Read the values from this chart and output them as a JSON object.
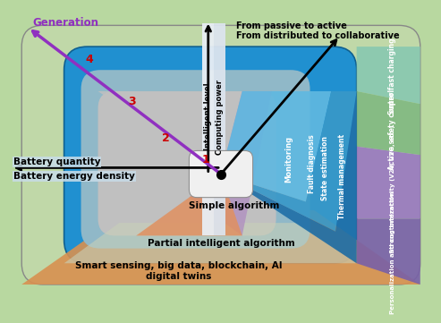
{
  "text_labels": {
    "generation": "Generation",
    "battery_quantity": "Battery quantity",
    "battery_energy_density": "Battery energy density",
    "intelligent_level": "Intelligent level",
    "computing_power": "Computing power",
    "from_passive": "From passive to active",
    "from_distributed": "From distributed to collaborative",
    "simple_algorithm": "Simple algorithm",
    "partial_algorithm": "Partial intelligent algorithm",
    "smart_sensing": "Smart sensing, big data, blockchain, AI\ndigital twins",
    "monitoring": "Monitoring",
    "fault_diagnosis": "Fault diagnosis",
    "state_estimation": "State estimation",
    "thermal_management": "Thermal management",
    "super_fast": "Super fast charging",
    "active_safety": "Active safety control",
    "strong_interactivity": "Strong interactivity (V2V, V2G, etc.)",
    "personalization": "Personalization and customization"
  },
  "colors": {
    "outer_bg": "#b8d8a0",
    "blue_outer": "#2090d0",
    "blue_mid": "#50b8e8",
    "gray_inner": "#b8b8b8",
    "white_center": "#f0f0f0",
    "orange_bottom": "#e0a060",
    "purple_center": "#b090c0",
    "gray_upper": "#c8c8c8",
    "blue_monitoring": "#60b8e0",
    "blue_fault": "#3898c8",
    "blue_thermal": "#2878b0",
    "purple_right1": "#9880c0",
    "green_right2": "#80b880",
    "teal_right3": "#88c8b0",
    "purple_right4": "#8868a8",
    "arrow_purple": "#9030c0",
    "text_red": "#cc0000",
    "text_black": "#000000",
    "text_white": "#ffffff",
    "text_purple": "#9030c0"
  }
}
